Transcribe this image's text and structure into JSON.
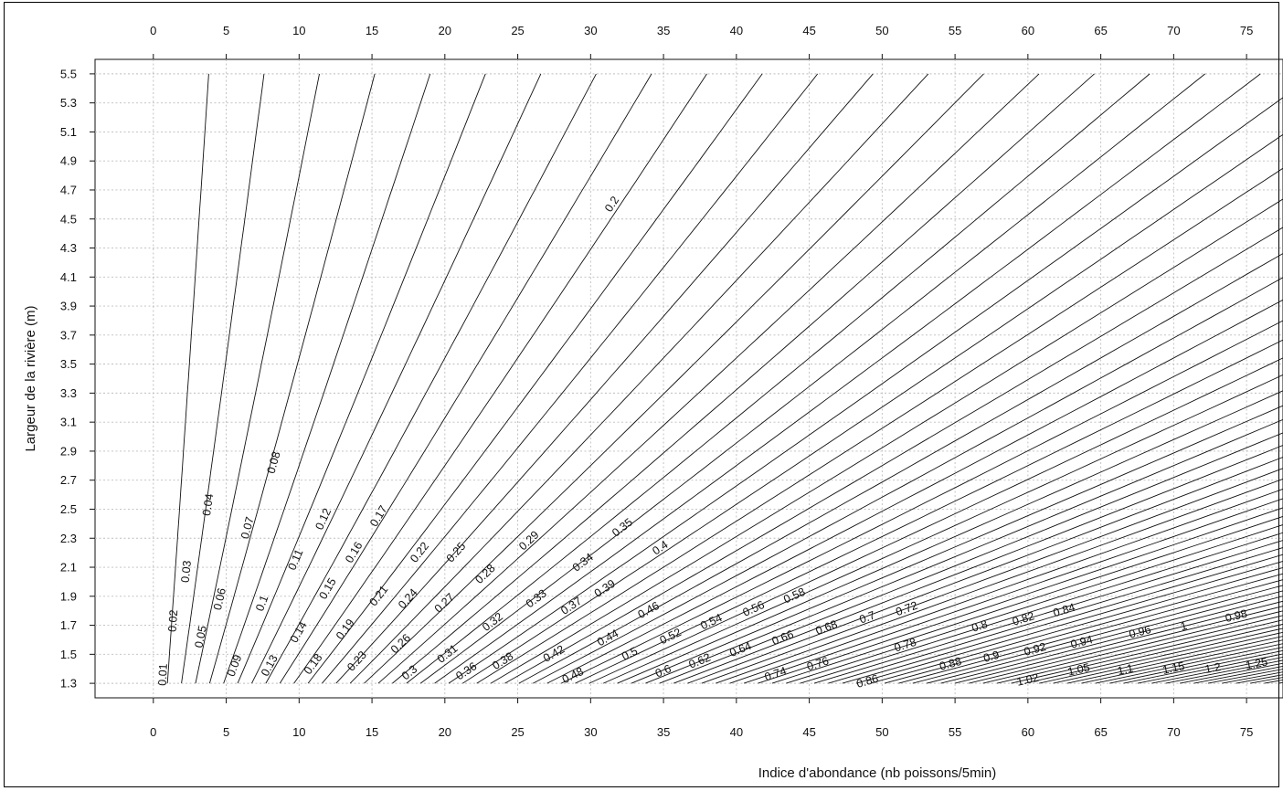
{
  "chart_data": {
    "type": "contour",
    "xlabel": "Indice d'abondance (nb poissons/5min)",
    "ylabel": "Largeur de la rivière (m)",
    "xlim": [
      -4,
      77.5
    ],
    "ylim": [
      1.2,
      5.6
    ],
    "x_ticks": [
      "0",
      "5",
      "10",
      "15",
      "20",
      "25",
      "30",
      "35",
      "40",
      "45",
      "50",
      "55",
      "60",
      "65",
      "70",
      "75"
    ],
    "y_ticks": [
      "1.3",
      "1.5",
      "1.7",
      "1.9",
      "2.1",
      "2.3",
      "2.5",
      "2.7",
      "2.9",
      "3.1",
      "3.3",
      "3.5",
      "3.7",
      "3.9",
      "4.1",
      "4.3",
      "4.5",
      "4.7",
      "4.9",
      "5.1",
      "5.3",
      "5.5"
    ],
    "grid": true,
    "x_axis_top": true,
    "contour_field": "z = 0.0133 * x / y^0.95",
    "contour_levels": [
      0.01,
      0.02,
      0.03,
      0.04,
      0.05,
      0.06,
      0.07,
      0.08,
      0.09,
      0.1,
      0.11,
      0.12,
      0.13,
      0.14,
      0.15,
      0.16,
      0.17,
      0.18,
      0.19,
      0.2,
      0.21,
      0.22,
      0.23,
      0.24,
      0.25,
      0.26,
      0.27,
      0.28,
      0.29,
      0.3,
      0.31,
      0.32,
      0.33,
      0.34,
      0.35,
      0.36,
      0.37,
      0.38,
      0.39,
      0.4,
      0.41,
      0.42,
      0.43,
      0.44,
      0.45,
      0.46,
      0.47,
      0.48,
      0.49,
      0.5,
      0.51,
      0.52,
      0.53,
      0.54,
      0.55,
      0.56,
      0.57,
      0.58,
      0.59,
      0.6,
      0.61,
      0.62,
      0.63,
      0.64,
      0.65,
      0.66,
      0.67,
      0.68,
      0.69,
      0.7,
      0.71,
      0.72,
      0.73,
      0.74,
      0.75,
      0.76,
      0.77,
      0.78,
      0.79,
      0.8,
      0.81,
      0.82,
      0.83,
      0.84,
      0.85,
      0.86,
      0.87,
      0.88,
      0.89,
      0.9,
      0.91,
      0.92,
      0.93,
      0.94,
      0.95,
      0.96,
      0.97,
      0.98,
      0.99,
      1,
      1.01,
      1.02,
      1.03,
      1.04,
      1.05,
      1.06,
      1.07,
      1.08,
      1.09,
      1.1,
      1.15,
      1.2,
      1.25
    ],
    "labels": [
      {
        "text": "0.01",
        "x": 0.7,
        "y": 1.36
      },
      {
        "text": "0.02",
        "x": 1.4,
        "y": 1.73
      },
      {
        "text": "0.03",
        "x": 2.3,
        "y": 2.07
      },
      {
        "text": "0.04",
        "x": 3.8,
        "y": 2.53
      },
      {
        "text": "0.05",
        "x": 3.3,
        "y": 1.62
      },
      {
        "text": "0.06",
        "x": 4.6,
        "y": 1.88
      },
      {
        "text": "0.07",
        "x": 6.5,
        "y": 2.37
      },
      {
        "text": "0.08",
        "x": 8.3,
        "y": 2.82
      },
      {
        "text": "0.09",
        "x": 5.6,
        "y": 1.42
      },
      {
        "text": "0.1",
        "x": 7.5,
        "y": 1.85
      },
      {
        "text": "0.11",
        "x": 9.8,
        "y": 2.15
      },
      {
        "text": "0.12",
        "x": 11.7,
        "y": 2.43
      },
      {
        "text": "0.13",
        "x": 8.0,
        "y": 1.42
      },
      {
        "text": "0.14",
        "x": 10.0,
        "y": 1.65
      },
      {
        "text": "0.15",
        "x": 12.0,
        "y": 1.95
      },
      {
        "text": "0.16",
        "x": 13.8,
        "y": 2.2
      },
      {
        "text": "0.17",
        "x": 15.5,
        "y": 2.45
      },
      {
        "text": "0.18",
        "x": 11.0,
        "y": 1.43
      },
      {
        "text": "0.19",
        "x": 13.2,
        "y": 1.67
      },
      {
        "text": "0.2",
        "x": 31.5,
        "y": 4.6
      },
      {
        "text": "0.21",
        "x": 15.5,
        "y": 1.9
      },
      {
        "text": "0.22",
        "x": 18.3,
        "y": 2.2
      },
      {
        "text": "0.23",
        "x": 14.0,
        "y": 1.45
      },
      {
        "text": "0.24",
        "x": 17.5,
        "y": 1.88
      },
      {
        "text": "0.25",
        "x": 20.8,
        "y": 2.2
      },
      {
        "text": "0.26",
        "x": 17.0,
        "y": 1.57
      },
      {
        "text": "0.27",
        "x": 20.0,
        "y": 1.85
      },
      {
        "text": "0.28",
        "x": 22.8,
        "y": 2.05
      },
      {
        "text": "0.29",
        "x": 25.8,
        "y": 2.28
      },
      {
        "text": "0.3",
        "x": 17.6,
        "y": 1.37
      },
      {
        "text": "0.31",
        "x": 20.2,
        "y": 1.5
      },
      {
        "text": "0.32",
        "x": 23.3,
        "y": 1.72
      },
      {
        "text": "0.33",
        "x": 26.3,
        "y": 1.88
      },
      {
        "text": "0.34",
        "x": 29.5,
        "y": 2.13
      },
      {
        "text": "0.35",
        "x": 32.2,
        "y": 2.37
      },
      {
        "text": "0.36",
        "x": 21.5,
        "y": 1.38
      },
      {
        "text": "0.37",
        "x": 28.7,
        "y": 1.83
      },
      {
        "text": "0.38",
        "x": 24.0,
        "y": 1.45
      },
      {
        "text": "0.39",
        "x": 31.0,
        "y": 1.95
      },
      {
        "text": "0.4",
        "x": 34.8,
        "y": 2.23
      },
      {
        "text": "0.42",
        "x": 27.5,
        "y": 1.5
      },
      {
        "text": "0.44",
        "x": 31.2,
        "y": 1.61
      },
      {
        "text": "0.46",
        "x": 34.0,
        "y": 1.8
      },
      {
        "text": "0.48",
        "x": 28.8,
        "y": 1.35
      },
      {
        "text": "0.5",
        "x": 32.7,
        "y": 1.5
      },
      {
        "text": "0.52",
        "x": 35.5,
        "y": 1.62
      },
      {
        "text": "0.54",
        "x": 38.3,
        "y": 1.72
      },
      {
        "text": "0.56",
        "x": 41.2,
        "y": 1.81
      },
      {
        "text": "0.58",
        "x": 44.0,
        "y": 1.9
      },
      {
        "text": "0.6",
        "x": 35.0,
        "y": 1.38
      },
      {
        "text": "0.62",
        "x": 37.5,
        "y": 1.45
      },
      {
        "text": "0.64",
        "x": 40.3,
        "y": 1.53
      },
      {
        "text": "0.66",
        "x": 43.2,
        "y": 1.61
      },
      {
        "text": "0.68",
        "x": 46.2,
        "y": 1.68
      },
      {
        "text": "0.7",
        "x": 49.0,
        "y": 1.75
      },
      {
        "text": "0.72",
        "x": 51.7,
        "y": 1.81
      },
      {
        "text": "0.74",
        "x": 42.7,
        "y": 1.36
      },
      {
        "text": "0.76",
        "x": 45.6,
        "y": 1.43
      },
      {
        "text": "0.78",
        "x": 51.6,
        "y": 1.56
      },
      {
        "text": "0.8",
        "x": 56.7,
        "y": 1.69
      },
      {
        "text": "0.82",
        "x": 59.7,
        "y": 1.74
      },
      {
        "text": "0.84",
        "x": 62.5,
        "y": 1.8
      },
      {
        "text": "0.86",
        "x": 49.0,
        "y": 1.31
      },
      {
        "text": "0.88",
        "x": 54.7,
        "y": 1.43
      },
      {
        "text": "0.9",
        "x": 57.5,
        "y": 1.48
      },
      {
        "text": "0.92",
        "x": 60.5,
        "y": 1.53
      },
      {
        "text": "0.94",
        "x": 63.7,
        "y": 1.58
      },
      {
        "text": "0.96",
        "x": 67.7,
        "y": 1.65
      },
      {
        "text": "0.98",
        "x": 74.3,
        "y": 1.76
      },
      {
        "text": "1",
        "x": 70.7,
        "y": 1.69
      },
      {
        "text": "1.02",
        "x": 60.0,
        "y": 1.32
      },
      {
        "text": "1.05",
        "x": 63.5,
        "y": 1.39
      },
      {
        "text": "1.1",
        "x": 66.7,
        "y": 1.39
      },
      {
        "text": "1.15",
        "x": 70.0,
        "y": 1.4
      },
      {
        "text": "1.2",
        "x": 72.7,
        "y": 1.4
      },
      {
        "text": "1.25",
        "x": 75.7,
        "y": 1.43
      }
    ]
  }
}
